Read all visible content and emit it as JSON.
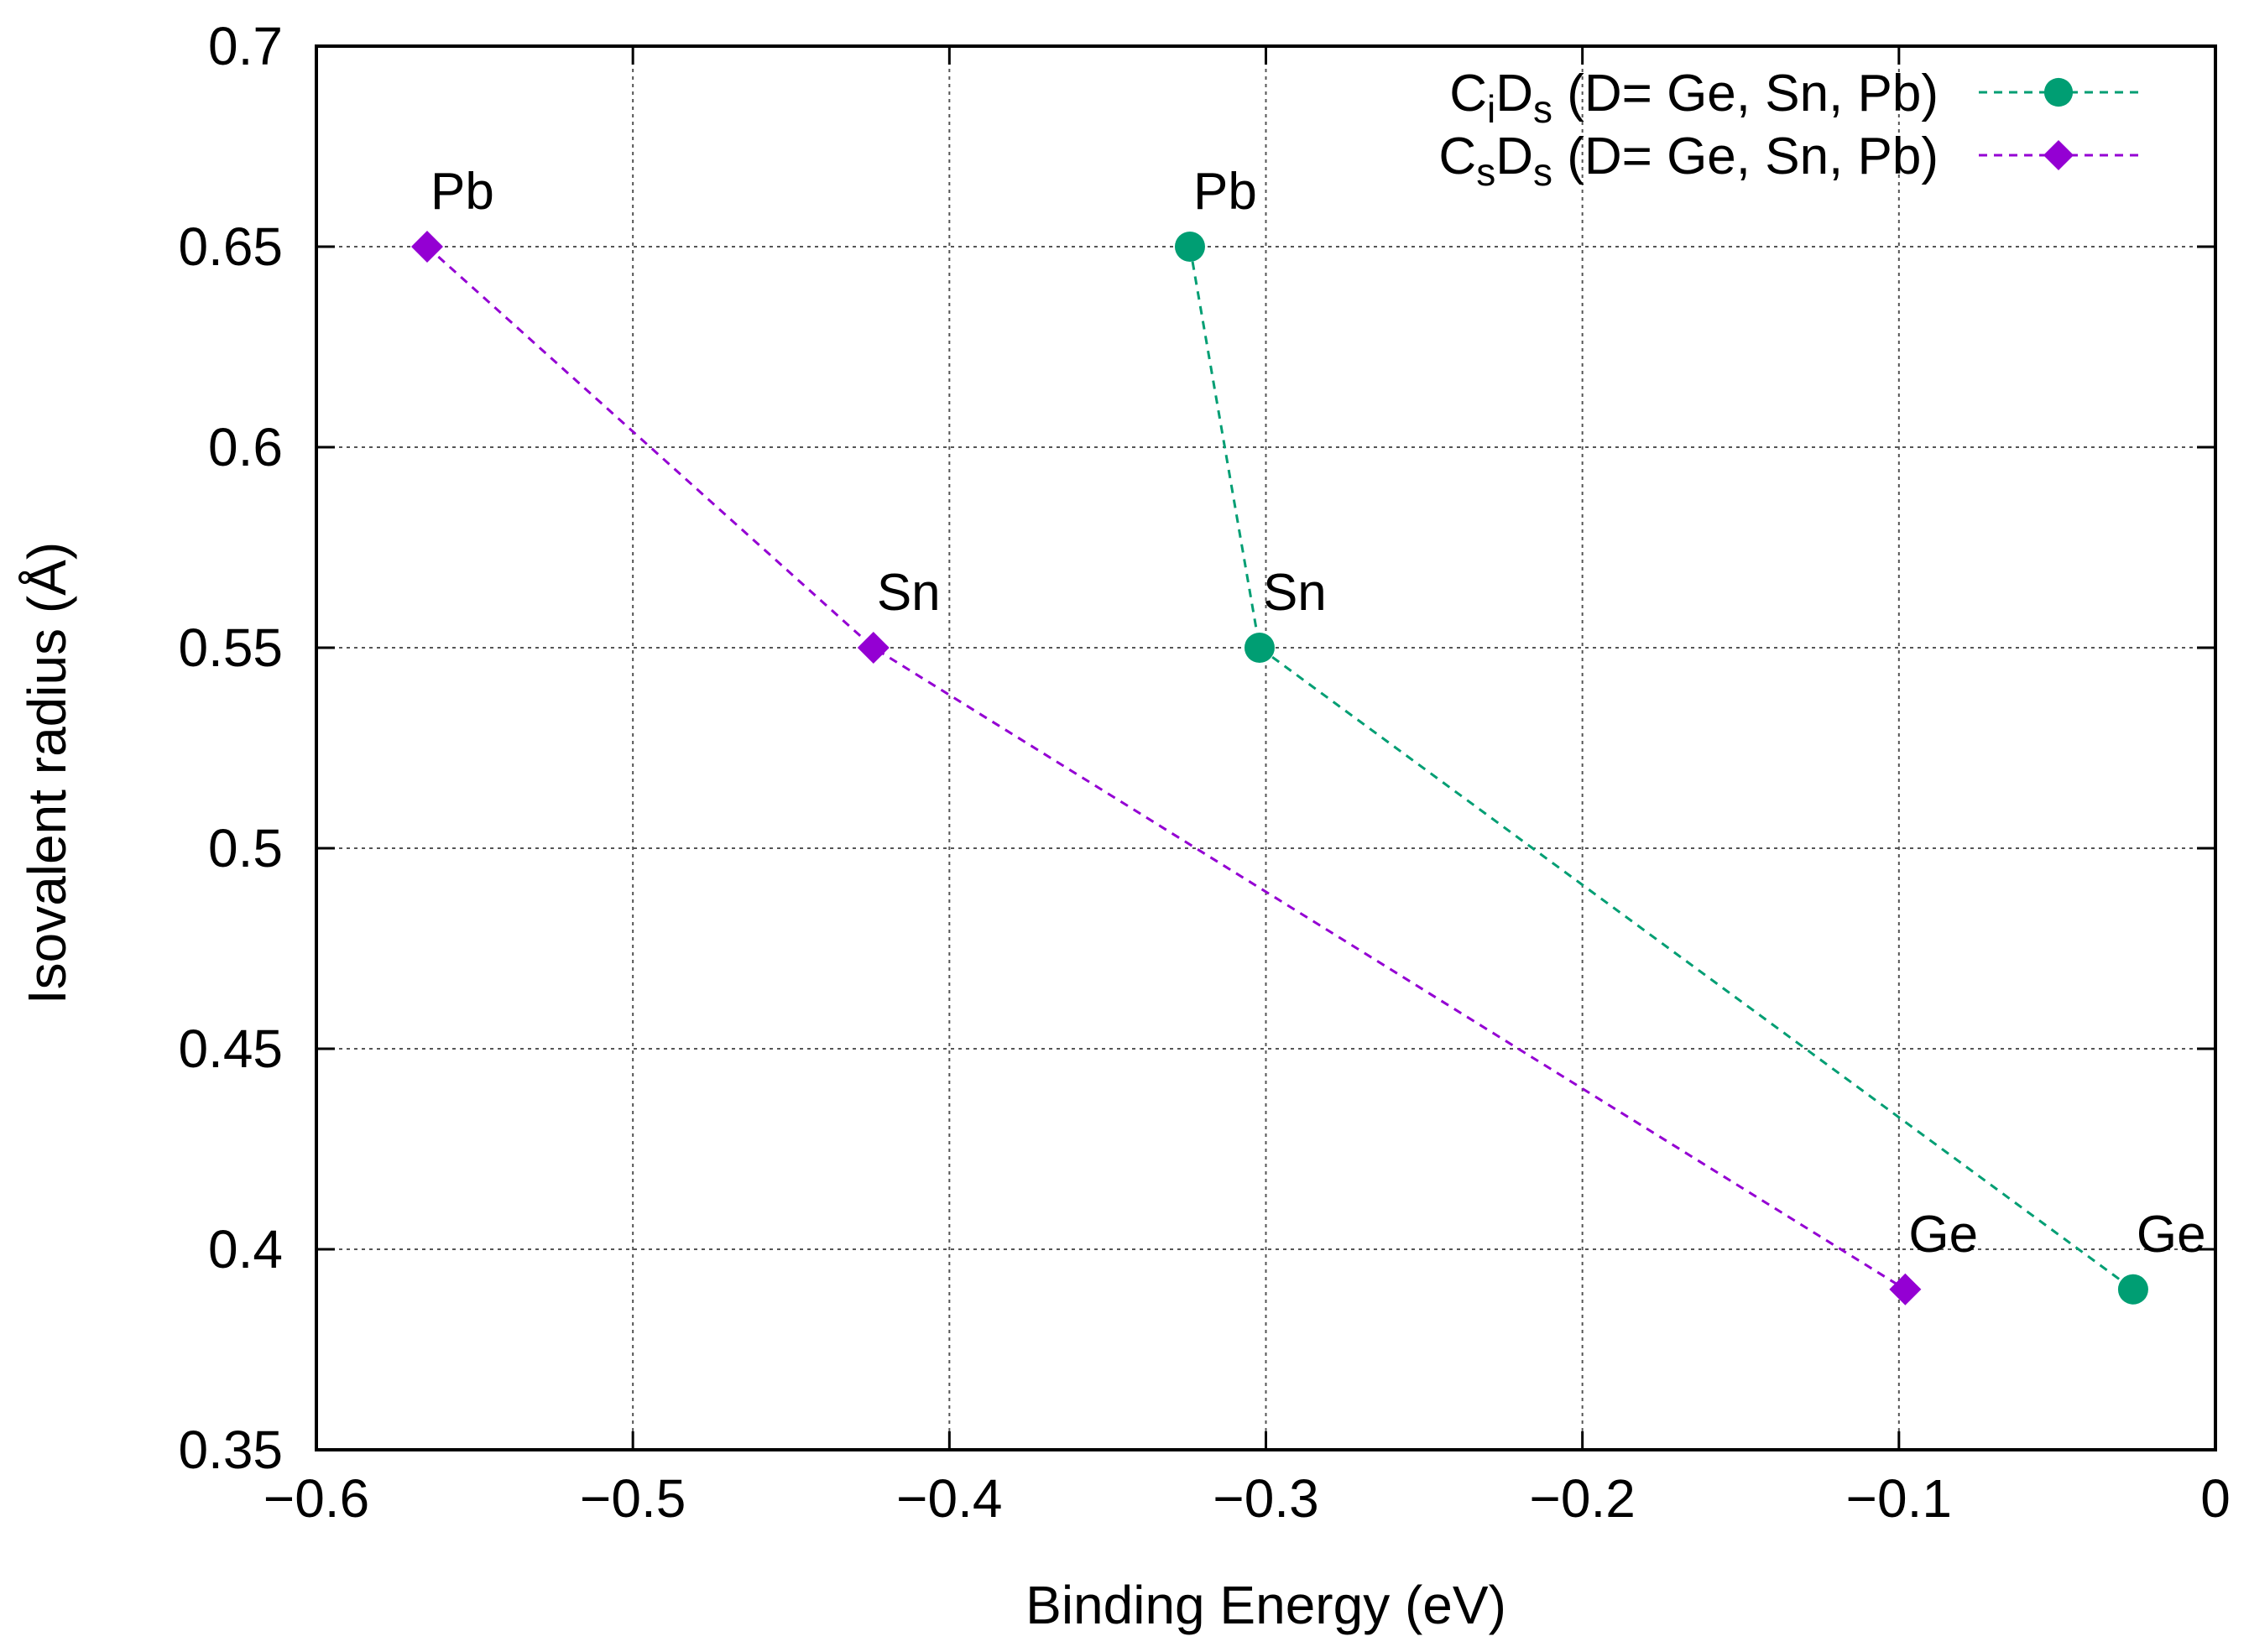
{
  "chart_data": {
    "type": "scatter",
    "title": "",
    "xlabel": "Binding Energy (eV)",
    "ylabel": "Isovalent radius (Å)",
    "xlim": [
      -0.6,
      0
    ],
    "ylim": [
      0.35,
      0.7
    ],
    "xticks": [
      {
        "value": -0.6,
        "label": "−0.6"
      },
      {
        "value": -0.5,
        "label": "−0.5"
      },
      {
        "value": -0.4,
        "label": "−0.4"
      },
      {
        "value": -0.3,
        "label": "−0.3"
      },
      {
        "value": -0.2,
        "label": "−0.2"
      },
      {
        "value": -0.1,
        "label": "−0.1"
      },
      {
        "value": 0,
        "label": "0"
      }
    ],
    "yticks": [
      {
        "value": 0.35,
        "label": "0.35"
      },
      {
        "value": 0.4,
        "label": "0.4"
      },
      {
        "value": 0.45,
        "label": "0.45"
      },
      {
        "value": 0.5,
        "label": "0.5"
      },
      {
        "value": 0.55,
        "label": "0.55"
      },
      {
        "value": 0.6,
        "label": "0.6"
      },
      {
        "value": 0.65,
        "label": "0.65"
      },
      {
        "value": 0.7,
        "label": "0.7"
      }
    ],
    "grid": true,
    "legend_position": "top-right",
    "series": [
      {
        "name": "CiDs (D= Ge, Sn, Pb)",
        "legend_parts": {
          "c": "C",
          "c_sub": "i",
          "d": "D",
          "d_sub": "s",
          "rest": " (D= Ge, Sn, Pb)"
        },
        "color": "#009e73",
        "marker": "circle",
        "line": "dashed",
        "points": [
          {
            "x": -0.324,
            "y": 0.65,
            "label": "Pb"
          },
          {
            "x": -0.302,
            "y": 0.55,
            "label": "Sn"
          },
          {
            "x": -0.026,
            "y": 0.39,
            "label": "Ge"
          }
        ]
      },
      {
        "name": "CsDs (D= Ge, Sn, Pb)",
        "legend_parts": {
          "c": "C",
          "c_sub": "s",
          "d": "D",
          "d_sub": "s",
          "rest": " (D= Ge, Sn, Pb)"
        },
        "color": "#9400d3",
        "marker": "diamond",
        "line": "dashed",
        "points": [
          {
            "x": -0.565,
            "y": 0.65,
            "label": "Pb"
          },
          {
            "x": -0.424,
            "y": 0.55,
            "label": "Sn"
          },
          {
            "x": -0.098,
            "y": 0.39,
            "label": "Ge"
          }
        ]
      }
    ]
  }
}
